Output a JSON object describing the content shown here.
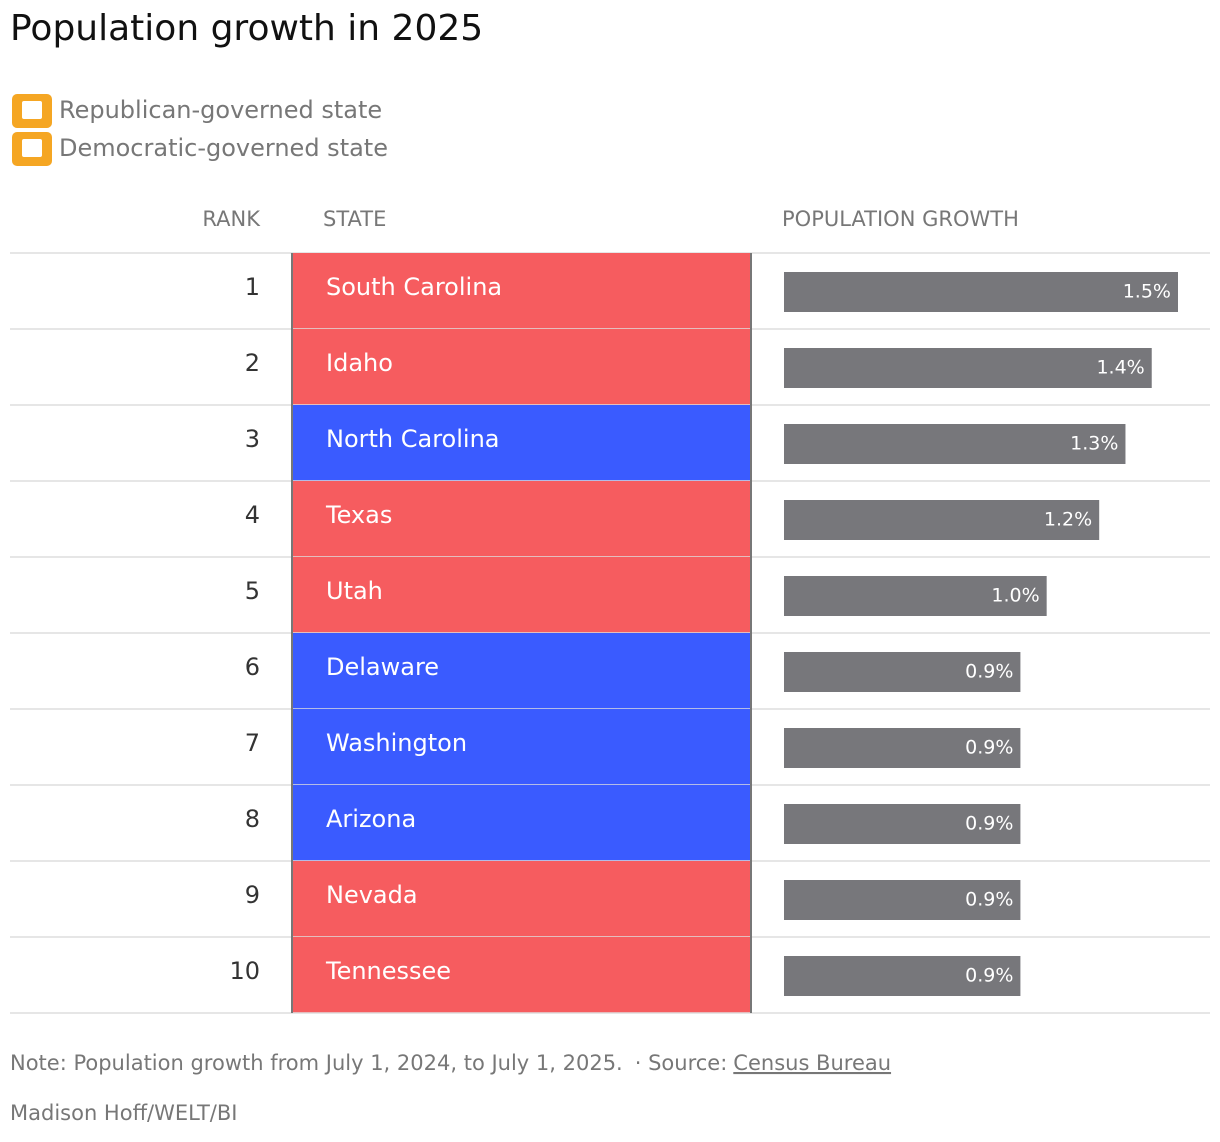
{
  "chart_data": {
    "type": "bar",
    "title": "Population growth in 2025",
    "legend": [
      {
        "label": "Republican-governed state",
        "color": "#f65c5f"
      },
      {
        "label": "Democratic-governed state",
        "color": "#3a5bff"
      }
    ],
    "columns": [
      "RANK",
      "STATE",
      "POPULATION GROWTH"
    ],
    "ranks": [
      1,
      2,
      3,
      4,
      5,
      6,
      7,
      8,
      9,
      10
    ],
    "categories": [
      "South Carolina",
      "Idaho",
      "North Carolina",
      "Texas",
      "Utah",
      "Delaware",
      "Washington",
      "Arizona",
      "Nevada",
      "Tennessee"
    ],
    "row_colors": [
      "#f65c5f",
      "#f65c5f",
      "#3a5bff",
      "#f65c5f",
      "#f65c5f",
      "#3a5bff",
      "#3a5bff",
      "#3a5bff",
      "#f65c5f",
      "#f65c5f"
    ],
    "values": [
      1.5,
      1.4,
      1.3,
      1.2,
      1.0,
      0.9,
      0.9,
      0.9,
      0.9,
      0.9
    ],
    "value_labels": [
      "1.5%",
      "1.4%",
      "1.3%",
      "1.2%",
      "1.0%",
      "0.9%",
      "0.9%",
      "0.9%",
      "0.9%",
      "0.9%"
    ],
    "color": "#77777b",
    "note": "Note: Population growth from July 1, 2024, to July 1, 2025.",
    "source_prefix": "· Source:",
    "source": "Census Bureau",
    "credit": "Madison Hoff/WELT/BI"
  }
}
